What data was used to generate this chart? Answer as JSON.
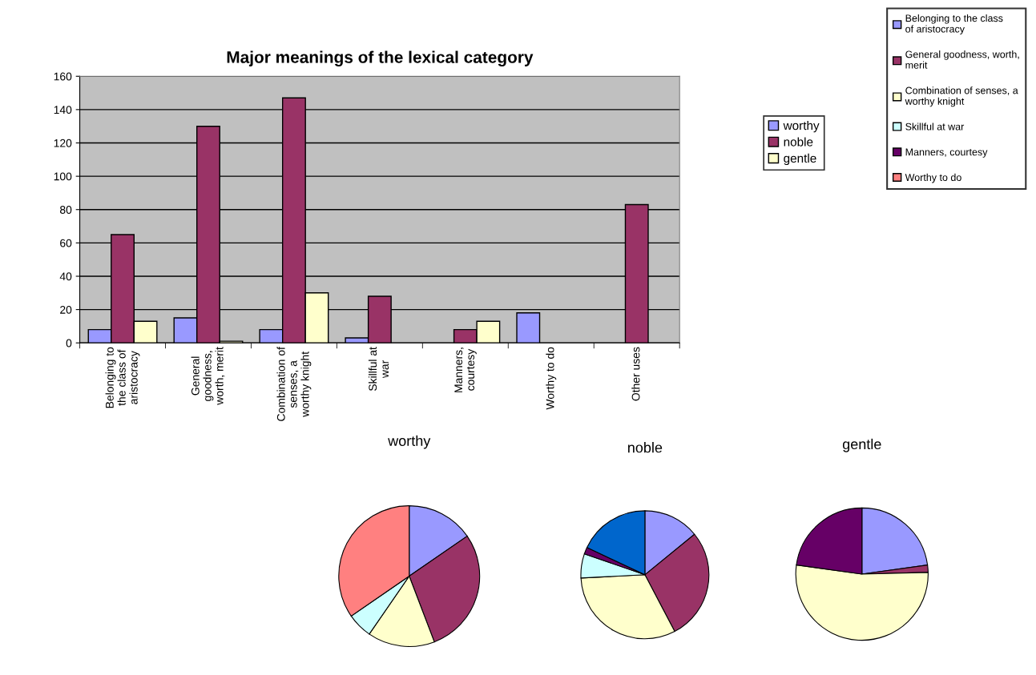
{
  "chart_data": [
    {
      "type": "bar",
      "title": "Major meanings of the lexical category",
      "categories": [
        "Belonging to the class of aristocracy",
        "General goodness, worth, merit",
        "Combination of senses, a worthy knight",
        "Skillful at war",
        "Manners, courtesy",
        "Worthy to do",
        "Other uses"
      ],
      "series": [
        {
          "name": "worthy",
          "color": "#9999ff",
          "values": [
            8,
            15,
            8,
            3,
            null,
            18,
            null
          ]
        },
        {
          "name": "noble",
          "color": "#993366",
          "values": [
            65,
            130,
            147,
            28,
            8,
            null,
            83
          ]
        },
        {
          "name": "gentle",
          "color": "#ffffcc",
          "values": [
            13,
            1,
            30,
            null,
            13,
            null,
            null
          ]
        }
      ],
      "ylim": [
        0,
        160
      ],
      "yticks": [
        0,
        20,
        40,
        60,
        80,
        100,
        120,
        140,
        160
      ],
      "grid": "y",
      "legend": "right"
    },
    {
      "type": "pie",
      "title": "worthy",
      "categories": [
        "Belonging to the class of aristocracy",
        "General goodness, worth, merit",
        "Combination of senses, a worthy knight",
        "Skillful at war",
        "Manners, courtesy",
        "Worthy to do"
      ],
      "values": [
        15.4,
        28.8,
        15.4,
        5.8,
        0,
        34.6
      ],
      "colors": [
        "#9999ff",
        "#993366",
        "#ffffcc",
        "#ccffff",
        "#660066",
        "#ff8080"
      ],
      "legend": "top right"
    },
    {
      "type": "pie",
      "title": "noble",
      "categories": [
        null,
        null,
        null,
        null,
        null,
        null
      ],
      "values": [
        14.1,
        28.2,
        31.9,
        6.1,
        1.7,
        18.0
      ],
      "colors": [
        "#9999ff",
        "#993366",
        "#ffffcc",
        "#ccffff",
        "#660066",
        "#0066cc"
      ]
    },
    {
      "type": "pie",
      "title": "gentle",
      "categories": [
        null,
        null,
        null,
        null
      ],
      "values": [
        22.8,
        1.8,
        52.6,
        22.8
      ],
      "colors": [
        "#9999ff",
        "#993366",
        "#ffffcc",
        "#660066"
      ]
    }
  ]
}
